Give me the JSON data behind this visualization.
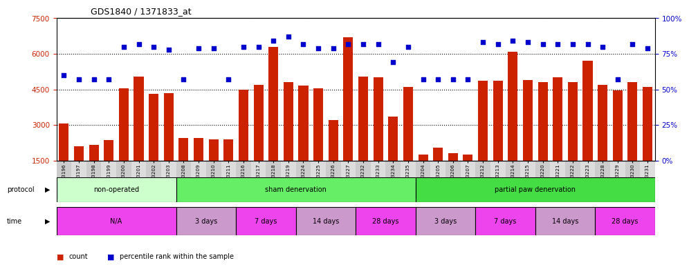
{
  "title": "GDS1840 / 1371833_at",
  "samples": [
    "GSM53196",
    "GSM53197",
    "GSM53198",
    "GSM53199",
    "GSM53200",
    "GSM53201",
    "GSM53202",
    "GSM53203",
    "GSM53208",
    "GSM53209",
    "GSM53210",
    "GSM53211",
    "GSM53216",
    "GSM53217",
    "GSM53218",
    "GSM53219",
    "GSM53224",
    "GSM53225",
    "GSM53226",
    "GSM53227",
    "GSM53232",
    "GSM53233",
    "GSM53234",
    "GSM53235",
    "GSM53204",
    "GSM53205",
    "GSM53206",
    "GSM53207",
    "GSM53212",
    "GSM53213",
    "GSM53214",
    "GSM53215",
    "GSM53220",
    "GSM53221",
    "GSM53222",
    "GSM53223",
    "GSM53228",
    "GSM53229",
    "GSM53230",
    "GSM53231"
  ],
  "counts": [
    3050,
    2100,
    2150,
    2350,
    4550,
    5050,
    4300,
    4350,
    2450,
    2450,
    2400,
    2400,
    4500,
    4700,
    6300,
    4800,
    4650,
    4550,
    3200,
    6700,
    5050,
    5000,
    3350,
    4600,
    1750,
    2050,
    1800,
    1750,
    4850,
    4850,
    6100,
    4900,
    4800,
    5000,
    4800,
    5700,
    4700,
    4450,
    4800,
    4600
  ],
  "percentiles": [
    60,
    57,
    57,
    57,
    80,
    82,
    80,
    78,
    57,
    79,
    79,
    57,
    80,
    80,
    84,
    87,
    82,
    79,
    79,
    82,
    82,
    82,
    69,
    80,
    57,
    57,
    57,
    57,
    83,
    82,
    84,
    83,
    82,
    82,
    82,
    82,
    80,
    57,
    82,
    79
  ],
  "bar_color": "#cc2200",
  "dot_color": "#0000cc",
  "ylim_left": [
    1500,
    7500
  ],
  "ylim_right": [
    0,
    100
  ],
  "yticks_left": [
    1500,
    3000,
    4500,
    6000,
    7500
  ],
  "yticks_right": [
    0,
    25,
    50,
    75,
    100
  ],
  "protocol_groups": [
    {
      "label": "non-operated",
      "start": 0,
      "end": 8,
      "color": "#ccffcc"
    },
    {
      "label": "sham denervation",
      "start": 8,
      "end": 24,
      "color": "#66ee66"
    },
    {
      "label": "partial paw denervation",
      "start": 24,
      "end": 40,
      "color": "#44dd44"
    }
  ],
  "time_groups": [
    {
      "label": "N/A",
      "start": 0,
      "end": 8,
      "color": "#ee44ee"
    },
    {
      "label": "3 days",
      "start": 8,
      "end": 12,
      "color": "#cc99cc"
    },
    {
      "label": "7 days",
      "start": 12,
      "end": 16,
      "color": "#ee44ee"
    },
    {
      "label": "14 days",
      "start": 16,
      "end": 20,
      "color": "#cc99cc"
    },
    {
      "label": "28 days",
      "start": 20,
      "end": 24,
      "color": "#ee44ee"
    },
    {
      "label": "3 days",
      "start": 24,
      "end": 28,
      "color": "#cc99cc"
    },
    {
      "label": "7 days",
      "start": 28,
      "end": 32,
      "color": "#ee44ee"
    },
    {
      "label": "14 days",
      "start": 32,
      "end": 36,
      "color": "#cc99cc"
    },
    {
      "label": "28 days",
      "start": 36,
      "end": 40,
      "color": "#ee44ee"
    }
  ],
  "background_color": "#ffffff"
}
